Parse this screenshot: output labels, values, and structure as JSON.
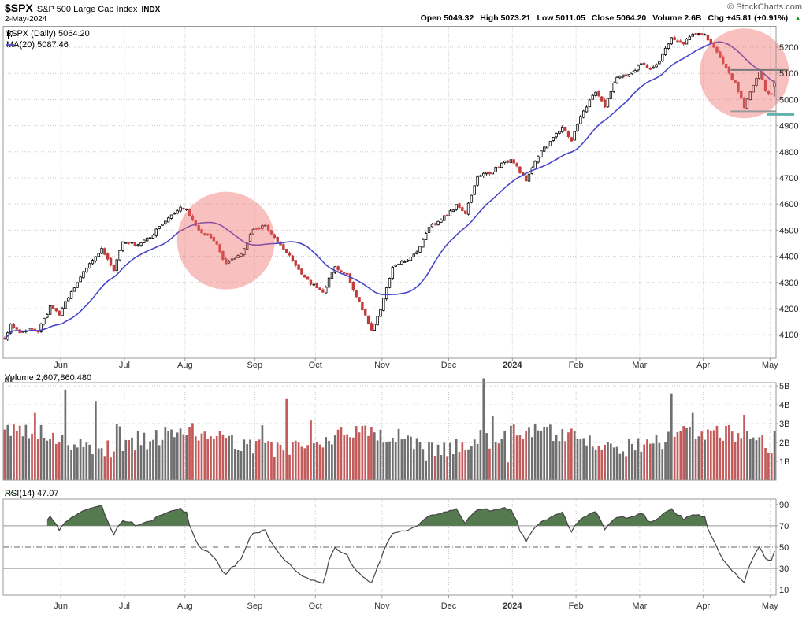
{
  "header": {
    "symbol": "$SPX",
    "name": "S&P 500 Large Cap Index",
    "exchange": "INDX",
    "date": "2-May-2024",
    "copyright": "© StockCharts.com",
    "quote": [
      {
        "label": "Open",
        "value": "5049.32"
      },
      {
        "label": "High",
        "value": "5073.21"
      },
      {
        "label": "Low",
        "value": "5011.05"
      },
      {
        "label": "Close",
        "value": "5064.20"
      },
      {
        "label": "Volume",
        "value": "2.6B"
      },
      {
        "label": "Chg",
        "value": "+45.81 (+0.91%)"
      }
    ],
    "change_direction": "▲",
    "change_color": "#009900"
  },
  "legend": {
    "price": "$SPX (Daily) 5064.20",
    "ma": "MA(20) 5087.46"
  },
  "panels": {
    "volume_label": "Volume 2,607,860,480",
    "rsi_label": "RSI(14) 47.07"
  },
  "colors": {
    "up": "#000000",
    "up_fill": "#ffffff",
    "down": "#c23b3b",
    "ma": "#4646c8",
    "grid": "#c8c8c8",
    "border": "#999999",
    "axis_text": "#222222",
    "month_text": "#333333",
    "circle": "rgba(240,105,105,0.42)",
    "vol_up": "#6f6f6f",
    "vol_down": "#c35b5b",
    "rsi_line": "#444444",
    "rsi_fill": "#567a50",
    "rsi_level": "#999999",
    "rsi_mid": "#666666",
    "teal": "#5fb2ad"
  },
  "chart_data": {
    "type": "candlestick+volume+rsi",
    "title": "$SPX S&P 500 Large Cap Index (Daily)",
    "timeframe": "May 2023 - 2 May 2024",
    "days": 255,
    "last_open": 5049.32,
    "last_high": 5073.21,
    "last_low": 5011.05,
    "last_close": 5064.2,
    "ma_period": 20,
    "ma_last": 5087.46,
    "rsi_period": 14,
    "rsi_last": 47.07,
    "volume_last_billions": 2.6,
    "x_months": [
      {
        "label": "Jun",
        "day": 19
      },
      {
        "label": "Jul",
        "day": 40
      },
      {
        "label": "Aug",
        "day": 60
      },
      {
        "label": "Sep",
        "day": 83
      },
      {
        "label": "Oct",
        "day": 103
      },
      {
        "label": "Nov",
        "day": 125
      },
      {
        "label": "Dec",
        "day": 147
      },
      {
        "label": "2024",
        "day": 168,
        "bold": true
      },
      {
        "label": "Feb",
        "day": 189
      },
      {
        "label": "Mar",
        "day": 210
      },
      {
        "label": "Apr",
        "day": 231
      },
      {
        "label": "May",
        "day": 253
      }
    ],
    "price_axis": {
      "min": 4010,
      "max": 5280,
      "ticks": [
        4100,
        4200,
        4300,
        4400,
        4500,
        4600,
        4700,
        4800,
        4900,
        5000,
        5100,
        5200
      ]
    },
    "volume_axis": {
      "max_billions": 5.17,
      "ticks": [
        {
          "v": 1,
          "label": "1B"
        },
        {
          "v": 2,
          "label": "2B"
        },
        {
          "v": 3,
          "label": "3B"
        },
        {
          "v": 4,
          "label": "4B"
        },
        {
          "v": 5,
          "label": "5B"
        }
      ]
    },
    "rsi_axis": {
      "ticks": [
        10,
        30,
        50,
        70,
        90
      ],
      "overbought": 70,
      "mid": 50,
      "oversold": 30
    },
    "close_anchors": [
      [
        0,
        4085
      ],
      [
        2,
        4136
      ],
      [
        5,
        4110
      ],
      [
        8,
        4124
      ],
      [
        11,
        4115
      ],
      [
        15,
        4205
      ],
      [
        18,
        4180
      ],
      [
        23,
        4283
      ],
      [
        28,
        4372
      ],
      [
        32,
        4426
      ],
      [
        36,
        4348
      ],
      [
        39,
        4450
      ],
      [
        44,
        4446
      ],
      [
        48,
        4473
      ],
      [
        53,
        4536
      ],
      [
        58,
        4589
      ],
      [
        60,
        4577
      ],
      [
        64,
        4502
      ],
      [
        69,
        4464
      ],
      [
        73,
        4370
      ],
      [
        78,
        4406
      ],
      [
        82,
        4508
      ],
      [
        86,
        4514
      ],
      [
        90,
        4451
      ],
      [
        94,
        4402
      ],
      [
        98,
        4330
      ],
      [
        102,
        4288
      ],
      [
        105,
        4263
      ],
      [
        109,
        4360
      ],
      [
        113,
        4328
      ],
      [
        117,
        4224
      ],
      [
        121,
        4117
      ],
      [
        124,
        4194
      ],
      [
        128,
        4358
      ],
      [
        132,
        4383
      ],
      [
        136,
        4415
      ],
      [
        140,
        4514
      ],
      [
        145,
        4550
      ],
      [
        149,
        4594
      ],
      [
        152,
        4569
      ],
      [
        156,
        4707
      ],
      [
        160,
        4719
      ],
      [
        164,
        4754
      ],
      [
        167,
        4770
      ],
      [
        169,
        4743
      ],
      [
        172,
        4688
      ],
      [
        176,
        4784
      ],
      [
        180,
        4840
      ],
      [
        184,
        4891
      ],
      [
        187,
        4846
      ],
      [
        191,
        4959
      ],
      [
        195,
        5027
      ],
      [
        198,
        4976
      ],
      [
        202,
        5088
      ],
      [
        206,
        5096
      ],
      [
        210,
        5137
      ],
      [
        213,
        5117
      ],
      [
        216,
        5150
      ],
      [
        220,
        5234
      ],
      [
        224,
        5218
      ],
      [
        228,
        5254
      ],
      [
        231,
        5244
      ],
      [
        234,
        5204
      ],
      [
        238,
        5123
      ],
      [
        241,
        5062
      ],
      [
        244,
        4967
      ],
      [
        246,
        5030
      ],
      [
        249,
        5105
      ],
      [
        251,
        5036
      ],
      [
        253,
        5018
      ],
      [
        254,
        5064.2
      ]
    ],
    "volume_base_billions": 2.15,
    "volume_overrides": [
      [
        20,
        4.8
      ],
      [
        30,
        4.2
      ],
      [
        35,
        1.2
      ],
      [
        93,
        4.3
      ],
      [
        139,
        1.05
      ],
      [
        158,
        5.4
      ],
      [
        166,
        0.95
      ],
      [
        220,
        4.6
      ],
      [
        254,
        2.6
      ]
    ],
    "annotations": {
      "circles": [
        {
          "day": 73,
          "price": 4460,
          "r": 62
        },
        {
          "day": 244,
          "price": 5100,
          "r": 57
        }
      ],
      "hlines": [
        {
          "price": 5113,
          "d1": 240,
          "d2": 259,
          "color": "#777777",
          "w": 2
        },
        {
          "price": 4955,
          "d1": 240,
          "d2": 255,
          "color": "#999999",
          "w": 2
        },
        {
          "price": 4943,
          "d1": 252,
          "d2": 261,
          "color": "#5fb2ad",
          "w": 3
        }
      ]
    }
  }
}
